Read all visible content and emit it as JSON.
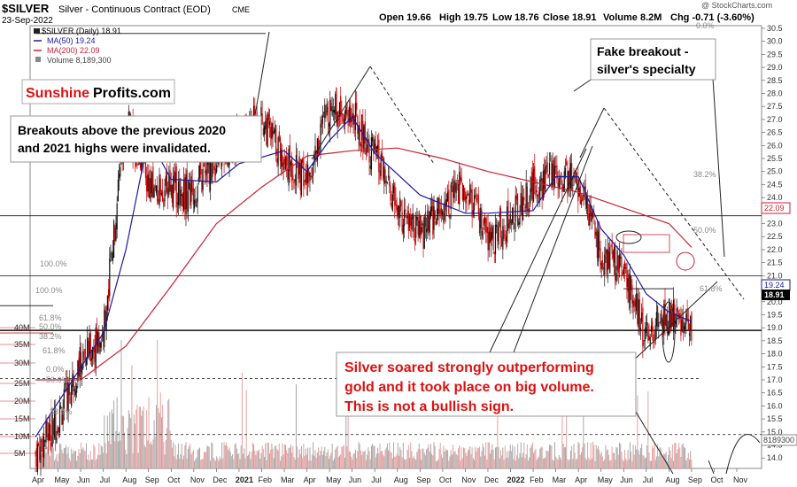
{
  "header": {
    "symbol": "$SILVER",
    "description": "Silver - Continuous Contract (EOD)",
    "exchange": "CME",
    "date": "23-Sep-2022",
    "open": "Open 19.66",
    "high": "High 19.75",
    "low": "Low 18.76",
    "close": "Close 18.91",
    "volume": "Volume 8.2M",
    "change": "Chg -0.71 (-3.60%)",
    "watermark": "@ StockCharts.com"
  },
  "legend": {
    "main": "$SILVER (Daily) 18.91",
    "ma50": "MA(50) 19.24",
    "ma200": "MA(200) 22.09",
    "volume": "Volume 8,189,300"
  },
  "brand": {
    "part1": "Sunshine",
    "part2": "Profits.com"
  },
  "annotations": {
    "breakouts_line1": "Breakouts above the previous 2020",
    "breakouts_line2": "and 2021 highs were invalidated.",
    "fake_line1": "Fake breakout -",
    "fake_line2": "silver's specialty",
    "soared_line1": "Silver soared strongly outperforming",
    "soared_line2": "gold and it took place on big volume.",
    "soared_line3": "This is not a bullish sign."
  },
  "fib_labels": {
    "right_0": "0.0%",
    "right_38": "38.2%",
    "right_50": "50.0%",
    "right_61": "61.8%",
    "left_100a": "100.0%",
    "left_100b": "100.0%",
    "left_61a": "61.8%",
    "left_50a": "50.0%",
    "left_38": "38.2%",
    "left_61b": "61.8%",
    "left_0": "0.0%",
    "left_50b": "50.0%",
    "left_38b": "38.2%"
  },
  "price_badges": {
    "ma200": "22.09",
    "ma50": "19.24",
    "close": "18.91",
    "volume": "8189300"
  },
  "colors": {
    "ma50": "#1a1aa6",
    "ma200": "#cc2233",
    "up_candle": "#111111",
    "down_candle": "#cc0000",
    "annotation_red": "#dd1111",
    "volume_bar": "#e8a0a0",
    "volume_bar_dark": "#a8a8a8"
  },
  "chart_data": {
    "type": "candlestick",
    "title": "$SILVER Silver - Continuous Contract (EOD)",
    "x_range": [
      "2020-04",
      "2022-10"
    ],
    "y_axis": {
      "ylim": [
        13.6,
        30.6
      ],
      "ticks": [
        14.0,
        14.5,
        15.0,
        15.5,
        16.0,
        16.5,
        17.0,
        17.5,
        18.0,
        18.5,
        19.0,
        19.5,
        20.0,
        20.5,
        21.0,
        21.5,
        22.0,
        22.5,
        23.0,
        23.5,
        24.0,
        24.5,
        25.0,
        25.5,
        26.0,
        26.5,
        27.0,
        27.5,
        28.0,
        28.5,
        29.0,
        29.5,
        30.0,
        30.5
      ]
    },
    "x_ticks": [
      "Apr",
      "May",
      "Jun",
      "Jul",
      "Aug",
      "Sep",
      "Oct",
      "Nov",
      "Dec",
      "2021",
      "Feb",
      "Mar",
      "Apr",
      "May",
      "Jun",
      "Jul",
      "Aug",
      "Sep",
      "Oct",
      "Nov",
      "Dec",
      "2022",
      "Feb",
      "Mar",
      "Apr",
      "May",
      "Jun",
      "Jul",
      "Aug",
      "Sep",
      "Oct",
      "Nov"
    ],
    "volume_axis": {
      "ticks": [
        "5M",
        "10M",
        "15M",
        "20M",
        "25M",
        "30M",
        "35M",
        "40M"
      ]
    },
    "close_path": [
      [
        "Apr 2020",
        14.2
      ],
      [
        "May 2020",
        15.5
      ],
      [
        "Jun 2020",
        17.7
      ],
      [
        "Jul 2020",
        18.8
      ],
      [
        "Aug 2020",
        27.0
      ],
      [
        "Sep 2020",
        24.3
      ],
      [
        "Oct 2020",
        24.3
      ],
      [
        "Nov 2020",
        24.2
      ],
      [
        "Dec 2020",
        25.5
      ],
      [
        "Jan 2021",
        26.5
      ],
      [
        "Feb 2021",
        27.0
      ],
      [
        "Mar 2021",
        25.5
      ],
      [
        "Apr 2021",
        24.6
      ],
      [
        "May 2021",
        27.6
      ],
      [
        "Jun 2021",
        27.2
      ],
      [
        "Jul 2021",
        25.6
      ],
      [
        "Aug 2021",
        23.5
      ],
      [
        "Sep 2021",
        22.5
      ],
      [
        "Oct 2021",
        23.7
      ],
      [
        "Nov 2021",
        24.5
      ],
      [
        "Dec 2021",
        22.2
      ],
      [
        "Jan 2022",
        23.2
      ],
      [
        "Feb 2022",
        24.4
      ],
      [
        "Mar 2022",
        25.0
      ],
      [
        "Apr 2022",
        24.5
      ],
      [
        "May 2022",
        21.8
      ],
      [
        "Jun 2022",
        21.2
      ],
      [
        "Jul 2022",
        18.5
      ],
      [
        "Aug 2022",
        19.5
      ],
      [
        "Sep 2022",
        18.91
      ]
    ],
    "ma50_path": [
      [
        "Apr 2020",
        14.8
      ],
      [
        "Jul 2020",
        18.8
      ],
      [
        "Aug 2020",
        22.0
      ],
      [
        "Sep 2020",
        26.3
      ],
      [
        "Oct 2020",
        24.7
      ],
      [
        "Dec 2020",
        24.6
      ],
      [
        "Jan 2021",
        25.3
      ],
      [
        "Mar 2021",
        25.8
      ],
      [
        "Apr 2021",
        25.0
      ],
      [
        "May 2021",
        26.2
      ],
      [
        "Jun 2021",
        27.1
      ],
      [
        "Jul 2021",
        25.7
      ],
      [
        "Sep 2021",
        24.1
      ],
      [
        "Nov 2021",
        23.4
      ],
      [
        "Dec 2021",
        23.4
      ],
      [
        "Feb 2022",
        23.5
      ],
      [
        "Mar 2022",
        24.8
      ],
      [
        "Apr 2022",
        24.8
      ],
      [
        "May 2022",
        22.8
      ],
      [
        "Jun 2022",
        21.8
      ],
      [
        "Jul 2022",
        20.3
      ],
      [
        "Aug 2022",
        19.6
      ],
      [
        "Sep 2022",
        19.24
      ]
    ],
    "ma200_path": [
      [
        "Apr 2020",
        17.0
      ],
      [
        "Jun 2020",
        17.0
      ],
      [
        "Aug 2020",
        18.3
      ],
      [
        "Oct 2020",
        20.6
      ],
      [
        "Dec 2020",
        23.0
      ],
      [
        "Feb 2021",
        24.4
      ],
      [
        "Apr 2021",
        25.6
      ],
      [
        "Jun 2021",
        25.8
      ],
      [
        "Aug 2021",
        25.9
      ],
      [
        "Oct 2021",
        25.5
      ],
      [
        "Dec 2021",
        25.0
      ],
      [
        "Feb 2022",
        24.6
      ],
      [
        "Apr 2022",
        24.2
      ],
      [
        "Jun 2022",
        23.6
      ],
      [
        "Aug 2022",
        23.0
      ],
      [
        "Sep 2022",
        22.09
      ]
    ],
    "horizontal_levels": [
      30.3,
      23.3,
      21.0,
      18.9,
      17.05,
      14.9
    ],
    "last": {
      "open": 19.66,
      "high": 19.75,
      "low": 18.76,
      "close": 18.91,
      "volume": 8189300,
      "ma50": 19.24,
      "ma200": 22.09
    }
  }
}
